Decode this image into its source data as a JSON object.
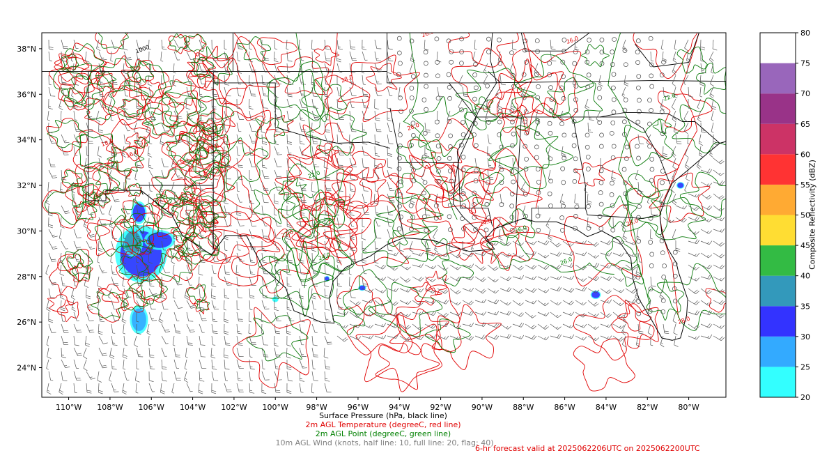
{
  "map": {
    "extent": {
      "lon_min": -111.3,
      "lon_max": -78.2,
      "lat_min": 22.7,
      "lat_max": 38.7
    },
    "lon_ticks": [
      -110,
      -108,
      -106,
      -104,
      -102,
      -100,
      -98,
      -96,
      -94,
      -92,
      -90,
      -88,
      -86,
      -84,
      -82,
      -80
    ],
    "lat_ticks": [
      24,
      26,
      28,
      30,
      32,
      34,
      36,
      38
    ],
    "lon_labels": [
      "110°W",
      "108°W",
      "106°W",
      "104°W",
      "102°W",
      "100°W",
      "98°W",
      "96°W",
      "94°W",
      "92°W",
      "90°W",
      "88°W",
      "86°W",
      "84°W",
      "82°W",
      "80°W"
    ],
    "lat_labels": [
      "24°N",
      "26°N",
      "28°N",
      "30°N",
      "32°N",
      "34°N",
      "36°N",
      "38°N"
    ],
    "contour_labels": [
      {
        "text": "1000",
        "lon": -106.4,
        "lat": 37.9,
        "color": "#000000"
      },
      {
        "text": "26.0",
        "lon": -93.3,
        "lat": 34.5,
        "color": "#e00000"
      },
      {
        "text": "26.0",
        "lon": -85.6,
        "lat": 38.3,
        "color": "#e00000"
      },
      {
        "text": "26.0",
        "lon": -92.6,
        "lat": 38.6,
        "color": "#e00000"
      },
      {
        "text": "24.0",
        "lon": -103.0,
        "lat": 33.6,
        "color": "#e00000"
      },
      {
        "text": "22.0",
        "lon": -99.4,
        "lat": 29.8,
        "color": "#e00000"
      },
      {
        "text": "24.0",
        "lon": -89.8,
        "lat": 30.3,
        "color": "#e00000"
      },
      {
        "text": "26.0",
        "lon": -88.1,
        "lat": 30.0,
        "color": "#008000"
      },
      {
        "text": "26.0",
        "lon": -85.9,
        "lat": 28.6,
        "color": "#008000"
      },
      {
        "text": "24.0",
        "lon": -97.6,
        "lat": 28.8,
        "color": "#008000"
      },
      {
        "text": "22.0",
        "lon": -98.1,
        "lat": 32.4,
        "color": "#008000"
      },
      {
        "text": "16.0",
        "lon": -106.9,
        "lat": 33.3,
        "color": "#e00000"
      },
      {
        "text": "18.0",
        "lon": -108.1,
        "lat": 33.8,
        "color": "#e00000"
      },
      {
        "text": "28.0",
        "lon": -96.5,
        "lat": 36.6,
        "color": "#e00000"
      },
      {
        "text": "22.0",
        "lon": -80.9,
        "lat": 35.8,
        "color": "#008000"
      },
      {
        "text": "28.0",
        "lon": -80.2,
        "lat": 26.0,
        "color": "#e00000"
      },
      {
        "text": "26.0",
        "lon": -82.7,
        "lat": 30.3,
        "color": "#e00000"
      }
    ],
    "reflectivity_cells": [
      {
        "lon": -106.5,
        "lat": 29.0,
        "rx": 1.0,
        "ry": 1.0,
        "dbz": 30
      },
      {
        "lon": -105.6,
        "lat": 29.6,
        "rx": 0.6,
        "ry": 0.35,
        "dbz": 30
      },
      {
        "lon": -106.9,
        "lat": 29.5,
        "rx": 0.4,
        "ry": 0.5,
        "dbz": 35
      },
      {
        "lon": -106.6,
        "lat": 26.1,
        "rx": 0.35,
        "ry": 0.5,
        "dbz": 25
      },
      {
        "lon": -106.6,
        "lat": 30.8,
        "rx": 0.3,
        "ry": 0.4,
        "dbz": 30
      },
      {
        "lon": -84.5,
        "lat": 27.2,
        "rx": 0.2,
        "ry": 0.15,
        "dbz": 30
      },
      {
        "lon": -95.8,
        "lat": 27.5,
        "rx": 0.15,
        "ry": 0.1,
        "dbz": 30
      },
      {
        "lon": -97.5,
        "lat": 27.9,
        "rx": 0.1,
        "ry": 0.1,
        "dbz": 30
      },
      {
        "lon": -100.0,
        "lat": 27.0,
        "rx": 0.12,
        "ry": 0.1,
        "dbz": 20
      },
      {
        "lon": -80.4,
        "lat": 32.0,
        "rx": 0.15,
        "ry": 0.12,
        "dbz": 30
      }
    ]
  },
  "colorbar": {
    "label": "Composite Reflectivity (dBZ)",
    "ticks": [
      "20",
      "25",
      "30",
      "35",
      "40",
      "45",
      "50",
      "55",
      "60",
      "65",
      "70",
      "75",
      "80"
    ],
    "colors": [
      "#33ffff",
      "#33aaff",
      "#3333ff",
      "#3399bb",
      "#33bb44",
      "#ffdd33",
      "#ffaa33",
      "#ff3333",
      "#cc3366",
      "#993388",
      "#9966bb",
      "#ffffff"
    ]
  },
  "captions": {
    "pressure": "Surface Pressure (hPa, black line)",
    "temperature": "2m AGL Temperature (degreeC, red line)",
    "dewpoint": "2m AGL Point (degreeC, green line)",
    "wind": "10m AGL Wind (knots, half line: 10, full line: 20, flag: 40)",
    "valid": "6-hr forecast valid at 2025062206UTC on 2025062200UTC"
  }
}
